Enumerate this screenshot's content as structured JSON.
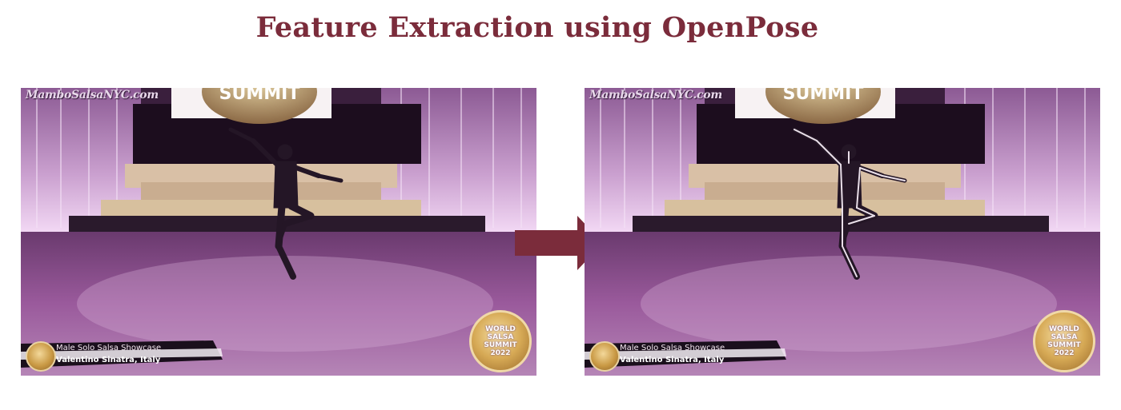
{
  "title": "Feature Extraction using OpenPose",
  "frames": [
    {
      "id": "input",
      "watermark": "MamboSalsaNYC.com",
      "banner_logo_text": "SUMMIT",
      "caption_line1": "Male Solo Salsa Showcase",
      "caption_line2": "Valentino Sinatra, Italy",
      "badge_text": "WORLD\nSALSA\nSUMMIT\n2022",
      "pose_overlay": false
    },
    {
      "id": "output",
      "watermark": "MamboSalsaNYC.com",
      "banner_logo_text": "SUMMIT",
      "caption_line1": "Male Solo Salsa Showcase",
      "caption_line2": "Valentino Sinatra, Italy",
      "badge_text": "WORLD\nSALSA\nSUMMIT\n2022",
      "pose_overlay": true
    }
  ],
  "arrow": {
    "icon": "right-arrow-icon",
    "color": "#7b2c3b"
  },
  "colors": {
    "title": "#7b2c3b",
    "stage_tint": "#8a4a8f"
  }
}
